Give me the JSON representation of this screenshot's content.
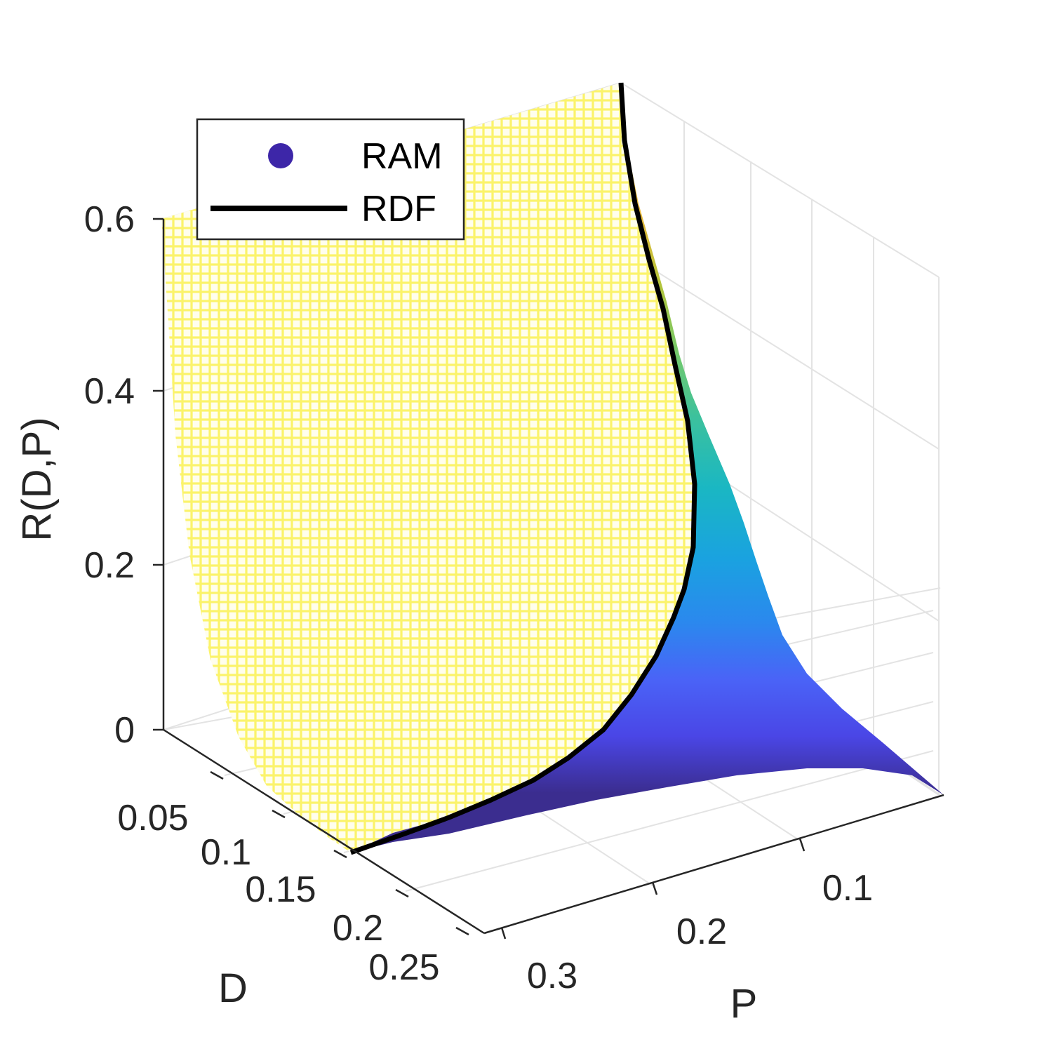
{
  "chart_data": {
    "type": "surface3d",
    "title": "",
    "xlabel": "P",
    "ylabel": "D",
    "zlabel": "R(D,P)",
    "x_ticks": [
      {
        "value": 0.3,
        "label": "0.3"
      },
      {
        "value": 0.2,
        "label": "0.2"
      },
      {
        "value": 0.1,
        "label": "0.1"
      }
    ],
    "y_ticks": [
      {
        "value": 0.05,
        "label": "0.05"
      },
      {
        "value": 0.1,
        "label": "0.1"
      },
      {
        "value": 0.15,
        "label": "0.15"
      },
      {
        "value": 0.2,
        "label": "0.2"
      },
      {
        "value": 0.25,
        "label": "0.25"
      }
    ],
    "z_ticks": [
      {
        "value": 0,
        "label": "0"
      },
      {
        "value": 0.2,
        "label": "0.2"
      },
      {
        "value": 0.4,
        "label": "0.4"
      },
      {
        "value": 0.6,
        "label": "0.6"
      }
    ],
    "xlim": [
      0.0,
      0.32
    ],
    "ylim": [
      0.02,
      0.3
    ],
    "zlim": [
      0,
      0.75
    ],
    "grid": true,
    "colormap": "parula",
    "legend_position": "top-left",
    "series": [
      {
        "name": "RAM",
        "marker": "circle",
        "color": "#3d26a8"
      },
      {
        "name": "RDF",
        "style": "line",
        "color": "#000000"
      }
    ],
    "rdf_curve": {
      "D": [
        0.02,
        0.04,
        0.06,
        0.08,
        0.1,
        0.12,
        0.14,
        0.16,
        0.18,
        0.2,
        0.22,
        0.24,
        0.25
      ],
      "R": [
        0.7,
        0.52,
        0.42,
        0.35,
        0.29,
        0.24,
        0.195,
        0.15,
        0.11,
        0.075,
        0.045,
        0.02,
        0.0
      ]
    }
  }
}
